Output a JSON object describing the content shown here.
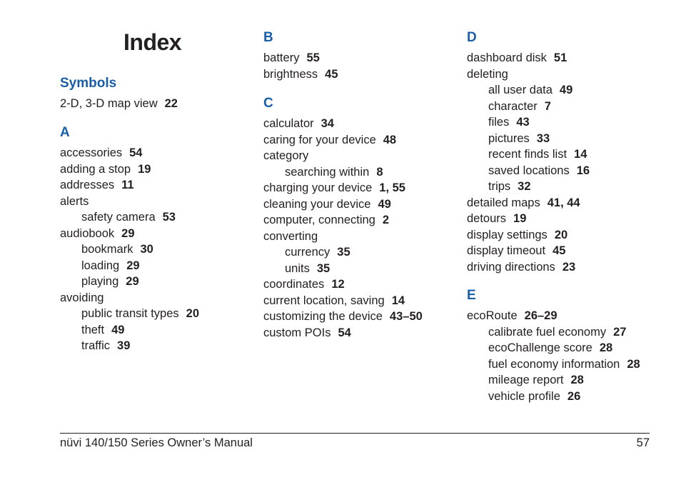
{
  "page": {
    "title": "Index"
  },
  "columns": [
    {
      "sections": [
        {
          "heading": "Symbols",
          "entries": [
            {
              "term": "2-D, 3-D map view",
              "pages": "22",
              "level": 0
            }
          ]
        },
        {
          "heading": "A",
          "entries": [
            {
              "term": "accessories",
              "pages": "54",
              "level": 0
            },
            {
              "term": "adding a stop",
              "pages": "19",
              "level": 0
            },
            {
              "term": "addresses",
              "pages": "11",
              "level": 0
            },
            {
              "term": "alerts",
              "pages": "",
              "level": 0
            },
            {
              "term": "safety camera",
              "pages": "53",
              "level": 1
            },
            {
              "term": "audiobook",
              "pages": "29",
              "level": 0
            },
            {
              "term": "bookmark",
              "pages": "30",
              "level": 1
            },
            {
              "term": "loading",
              "pages": "29",
              "level": 1
            },
            {
              "term": "playing",
              "pages": "29",
              "level": 1
            },
            {
              "term": "avoiding",
              "pages": "",
              "level": 0
            },
            {
              "term": "public transit types",
              "pages": "20",
              "level": 1
            },
            {
              "term": "theft",
              "pages": "49",
              "level": 1
            },
            {
              "term": "traffic",
              "pages": "39",
              "level": 1
            }
          ]
        }
      ]
    },
    {
      "sections": [
        {
          "heading": "B",
          "entries": [
            {
              "term": "battery",
              "pages": "55",
              "level": 0
            },
            {
              "term": "brightness",
              "pages": "45",
              "level": 0
            }
          ]
        },
        {
          "heading": "C",
          "entries": [
            {
              "term": "calculator",
              "pages": "34",
              "level": 0
            },
            {
              "term": "caring for your device",
              "pages": "48",
              "level": 0
            },
            {
              "term": "category",
              "pages": "",
              "level": 0
            },
            {
              "term": "searching within",
              "pages": "8",
              "level": 1
            },
            {
              "term": "charging your device",
              "pages": "1, 55",
              "level": 0
            },
            {
              "term": "cleaning your device",
              "pages": "49",
              "level": 0
            },
            {
              "term": "computer, connecting",
              "pages": "2",
              "level": 0
            },
            {
              "term": "converting",
              "pages": "",
              "level": 0
            },
            {
              "term": "currency",
              "pages": "35",
              "level": 1
            },
            {
              "term": "units",
              "pages": "35",
              "level": 1
            },
            {
              "term": "coordinates",
              "pages": "12",
              "level": 0
            },
            {
              "term": "current location, saving",
              "pages": "14",
              "level": 0
            },
            {
              "term": "customizing the device",
              "pages": "43–50",
              "level": 0
            },
            {
              "term": "custom POIs",
              "pages": "54",
              "level": 0
            }
          ]
        }
      ]
    },
    {
      "sections": [
        {
          "heading": "D",
          "entries": [
            {
              "term": "dashboard disk",
              "pages": "51",
              "level": 0
            },
            {
              "term": "deleting",
              "pages": "",
              "level": 0
            },
            {
              "term": "all user data",
              "pages": "49",
              "level": 1
            },
            {
              "term": "character",
              "pages": "7",
              "level": 1
            },
            {
              "term": "files",
              "pages": "43",
              "level": 1
            },
            {
              "term": "pictures",
              "pages": "33",
              "level": 1
            },
            {
              "term": "recent finds list",
              "pages": "14",
              "level": 1
            },
            {
              "term": "saved locations",
              "pages": "16",
              "level": 1
            },
            {
              "term": "trips",
              "pages": "32",
              "level": 1
            },
            {
              "term": "detailed maps",
              "pages": "41, 44",
              "level": 0
            },
            {
              "term": "detours",
              "pages": "19",
              "level": 0
            },
            {
              "term": "display settings",
              "pages": "20",
              "level": 0
            },
            {
              "term": "display timeout",
              "pages": "45",
              "level": 0
            },
            {
              "term": "driving directions",
              "pages": "23",
              "level": 0
            }
          ]
        },
        {
          "heading": "E",
          "entries": [
            {
              "term": "ecoRoute",
              "pages": "26–29",
              "level": 0
            },
            {
              "term": "calibrate fuel economy",
              "pages": "27",
              "level": 1
            },
            {
              "term": "ecoChallenge score",
              "pages": "28",
              "level": 1
            },
            {
              "term": "fuel economy information",
              "pages": "28",
              "level": 1
            },
            {
              "term": "mileage report",
              "pages": "28",
              "level": 1
            },
            {
              "term": "vehicle profile",
              "pages": "26",
              "level": 1
            }
          ]
        }
      ]
    }
  ],
  "footer": {
    "manual_title": "nüvi 140/150 Series Owner’s Manual",
    "page_number": "57"
  },
  "colors": {
    "heading": "#1a5ea8",
    "text": "#231f20"
  }
}
